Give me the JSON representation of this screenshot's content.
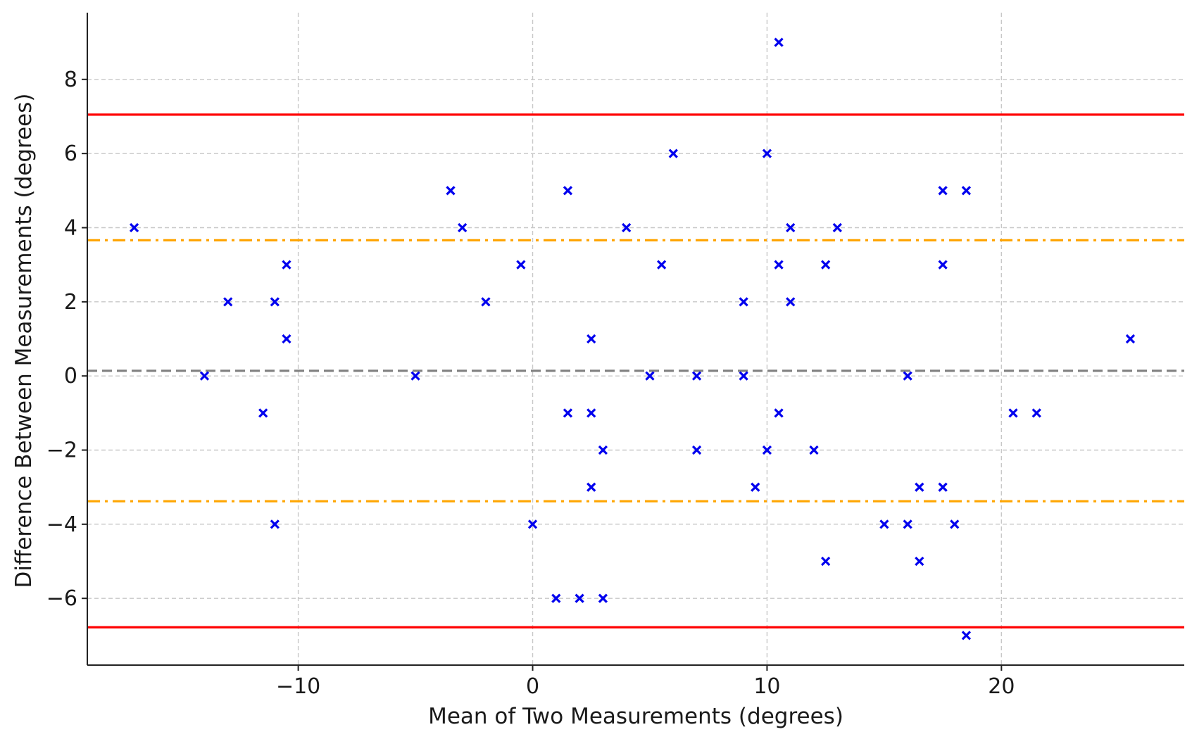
{
  "chart_data": {
    "type": "scatter",
    "xlabel": "Mean of Two Measurements (degrees)",
    "ylabel": "Difference Between Measurements (degrees)",
    "xlim": [
      -19.0,
      27.8
    ],
    "ylim": [
      -7.8,
      9.8
    ],
    "xticks": [
      -10,
      0,
      10,
      20
    ],
    "xtick_labels": [
      "−10",
      "0",
      "10",
      "20"
    ],
    "yticks": [
      -6,
      -4,
      -2,
      0,
      2,
      4,
      6,
      8
    ],
    "ytick_labels": [
      "−6",
      "−4",
      "−2",
      "0",
      "2",
      "4",
      "6",
      "8"
    ],
    "grid": true,
    "marker": "x",
    "point_color": "#0000ee",
    "reference_lines": [
      {
        "y": 0.14,
        "color": "#808080",
        "style": "dashed"
      },
      {
        "y": 3.66,
        "color": "#ffa500",
        "style": "dashdot"
      },
      {
        "y": -3.38,
        "color": "#ffa500",
        "style": "dashdot"
      },
      {
        "y": 7.05,
        "color": "#ff0000",
        "style": "solid"
      },
      {
        "y": -6.78,
        "color": "#ff0000",
        "style": "solid"
      }
    ],
    "points": [
      {
        "x": -17.0,
        "y": 4
      },
      {
        "x": -14.0,
        "y": 0
      },
      {
        "x": -13.0,
        "y": 2
      },
      {
        "x": -11.5,
        "y": -1
      },
      {
        "x": -11.0,
        "y": 2
      },
      {
        "x": -11.0,
        "y": -4
      },
      {
        "x": -10.5,
        "y": 3
      },
      {
        "x": -10.5,
        "y": 1
      },
      {
        "x": -5.0,
        "y": 0
      },
      {
        "x": -3.5,
        "y": 5
      },
      {
        "x": -3.0,
        "y": 4
      },
      {
        "x": -2.0,
        "y": 2
      },
      {
        "x": -0.5,
        "y": 3
      },
      {
        "x": 0.0,
        "y": -4
      },
      {
        "x": 1.0,
        "y": -6
      },
      {
        "x": 1.5,
        "y": 5
      },
      {
        "x": 1.5,
        "y": -1
      },
      {
        "x": 2.0,
        "y": -6
      },
      {
        "x": 2.5,
        "y": 1
      },
      {
        "x": 2.5,
        "y": -1
      },
      {
        "x": 2.5,
        "y": -3
      },
      {
        "x": 3.0,
        "y": -2
      },
      {
        "x": 3.0,
        "y": -6
      },
      {
        "x": 4.0,
        "y": 4
      },
      {
        "x": 5.0,
        "y": 0
      },
      {
        "x": 5.5,
        "y": 3
      },
      {
        "x": 6.0,
        "y": 6
      },
      {
        "x": 7.0,
        "y": 0
      },
      {
        "x": 7.0,
        "y": -2
      },
      {
        "x": 9.0,
        "y": 2
      },
      {
        "x": 9.0,
        "y": 0
      },
      {
        "x": 9.5,
        "y": -3
      },
      {
        "x": 10.0,
        "y": 6
      },
      {
        "x": 10.0,
        "y": -2
      },
      {
        "x": 10.5,
        "y": 9
      },
      {
        "x": 10.5,
        "y": 3
      },
      {
        "x": 10.5,
        "y": -1
      },
      {
        "x": 11.0,
        "y": 4
      },
      {
        "x": 11.0,
        "y": 2
      },
      {
        "x": 12.0,
        "y": -2
      },
      {
        "x": 12.5,
        "y": 3
      },
      {
        "x": 12.5,
        "y": -5
      },
      {
        "x": 13.0,
        "y": 4
      },
      {
        "x": 15.0,
        "y": -4
      },
      {
        "x": 16.0,
        "y": 0
      },
      {
        "x": 16.0,
        "y": -4
      },
      {
        "x": 16.5,
        "y": -3
      },
      {
        "x": 16.5,
        "y": -5
      },
      {
        "x": 17.5,
        "y": 5
      },
      {
        "x": 17.5,
        "y": 3
      },
      {
        "x": 17.5,
        "y": -3
      },
      {
        "x": 18.0,
        "y": -4
      },
      {
        "x": 18.5,
        "y": 5
      },
      {
        "x": 18.5,
        "y": -7
      },
      {
        "x": 20.5,
        "y": -1
      },
      {
        "x": 21.5,
        "y": -1
      },
      {
        "x": 25.5,
        "y": 1
      }
    ]
  }
}
